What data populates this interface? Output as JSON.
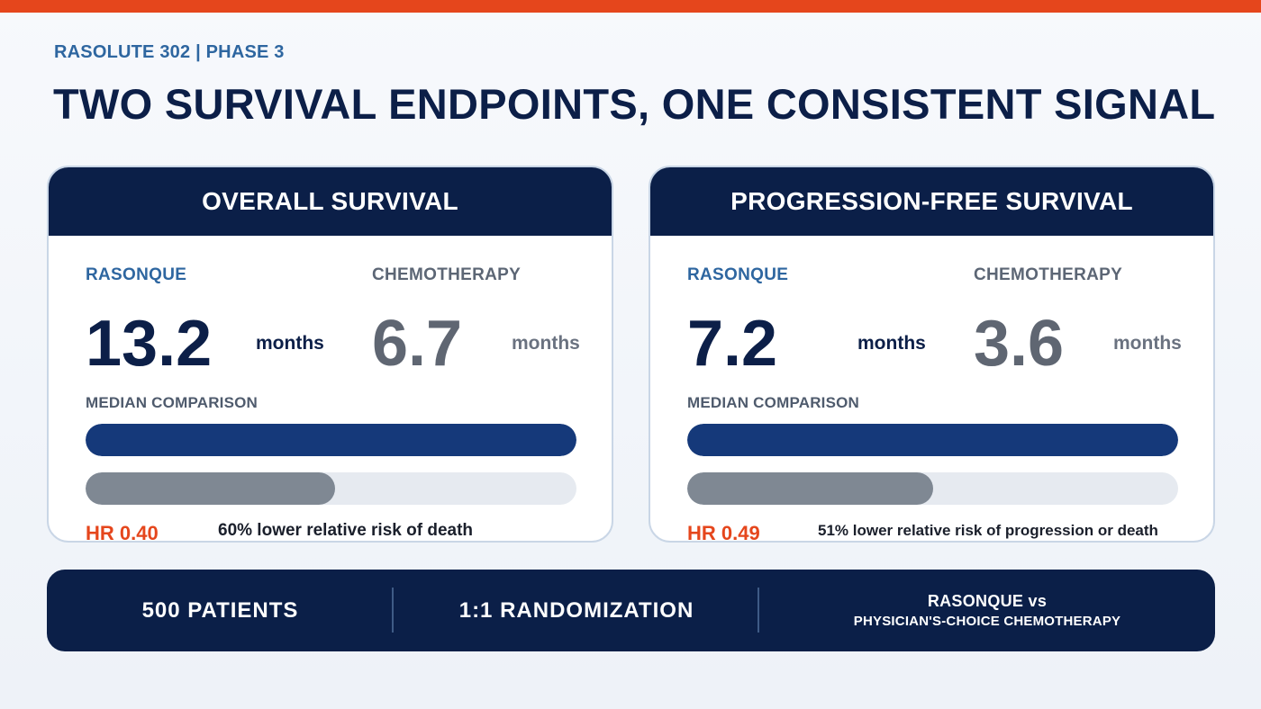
{
  "header": {
    "eyebrow": "RASOLUTE 302 | PHASE 3",
    "title": "TWO SURVIVAL ENDPOINTS, ONE CONSISTENT SIGNAL"
  },
  "colors": {
    "accent": "#e5461c",
    "navy": "#0b1f48",
    "treatment_bar": "#15397a",
    "control_bar": "#7f8893"
  },
  "chart_data": [
    {
      "type": "bar",
      "orientation": "horizontal",
      "title": "OVERALL SURVIVAL",
      "section_label": "MEDIAN COMPARISON",
      "categories": [
        "RASONQUE",
        "CHEMOTHERAPY"
      ],
      "values": [
        13.2,
        6.7
      ],
      "display_values": [
        "13.2",
        "6.7"
      ],
      "unit": "months",
      "xlim": [
        0,
        13.2
      ],
      "grid": false,
      "hazard_ratio": "HR 0.40",
      "note": "60% lower relative risk of death"
    },
    {
      "type": "bar",
      "orientation": "horizontal",
      "title": "PROGRESSION-FREE SURVIVAL",
      "section_label": "MEDIAN COMPARISON",
      "categories": [
        "RASONQUE",
        "CHEMOTHERAPY"
      ],
      "values": [
        7.2,
        3.6
      ],
      "display_values": [
        "7.2",
        "3.6"
      ],
      "unit": "months",
      "xlim": [
        0,
        7.2
      ],
      "grid": false,
      "hazard_ratio": "HR 0.49",
      "note": "51% lower relative risk of progression or death"
    }
  ],
  "footer": {
    "patients": "500 PATIENTS",
    "randomization": "1:1 RANDOMIZATION",
    "comparison_line1": "RASONQUE vs",
    "comparison_line2": "PHYSICIAN'S-CHOICE CHEMOTHERAPY"
  }
}
